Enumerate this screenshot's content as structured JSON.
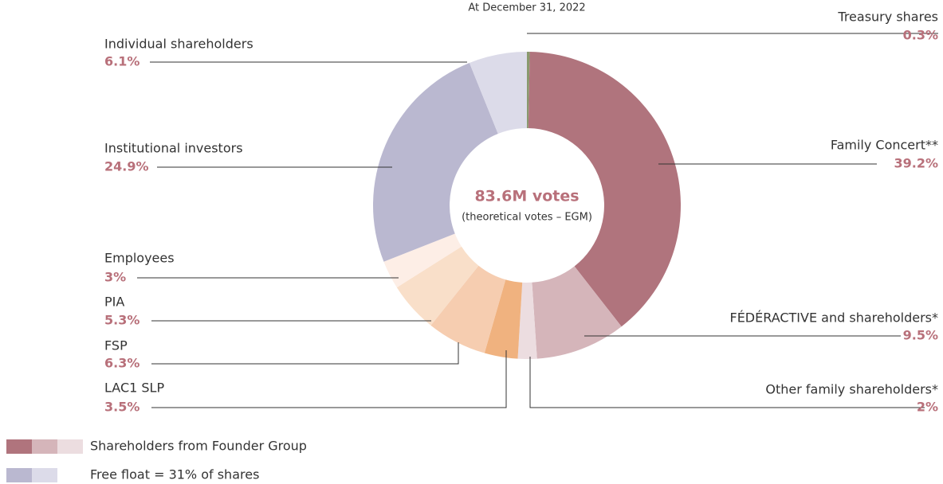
{
  "chart_data": {
    "type": "pie",
    "subtitle": "At December 31, 2022",
    "center_title": "83.6M votes",
    "center_subtitle": "(theoretical votes – EGM)",
    "categories": [
      "Treasury shares",
      "Family Concert**",
      "FÉDÉRACTIVE and shareholders*",
      "Other family shareholders*",
      "LAC1 SLP",
      "FSP",
      "PIA",
      "Employees",
      "Institutional investors",
      "Individual shareholders"
    ],
    "values": [
      0.3,
      39.2,
      9.5,
      2,
      3.5,
      6.3,
      5.3,
      3,
      24.9,
      6.1
    ],
    "value_labels": [
      "0.3%",
      "39.2%",
      "9.5%",
      "2%",
      "3.5%",
      "6.3%",
      "5.3%",
      "3%",
      "24.9%",
      "6.1%"
    ],
    "colors": [
      "#8a9a6e",
      "#b0747d",
      "#d5b5ba",
      "#ecdde0",
      "#f0b27f",
      "#f6cdb0",
      "#f9dfc9",
      "#fdeee6",
      "#bab8d0",
      "#dcdbe9"
    ],
    "legend": [
      {
        "label": "Shareholders from Founder Group",
        "colors": [
          "#b0747d",
          "#d5b5ba",
          "#ecdde0"
        ]
      },
      {
        "label": "Free float = 31% of shares",
        "colors": [
          "#bab8d0",
          "#dcdbe9"
        ]
      }
    ]
  }
}
